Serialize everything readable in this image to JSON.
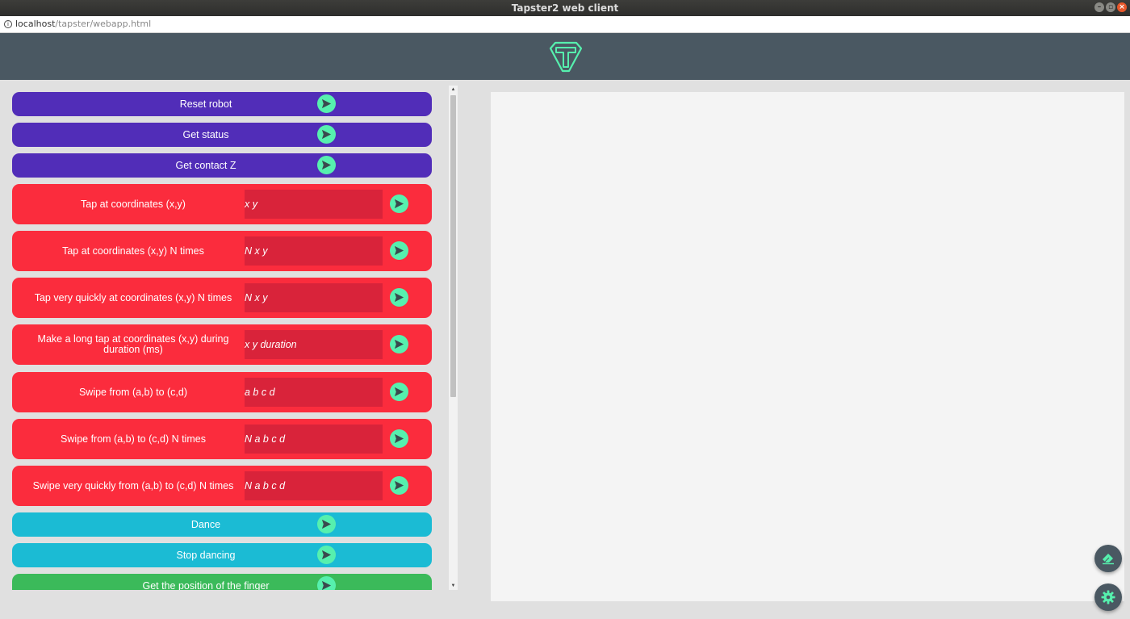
{
  "window": {
    "title": "Tapster2 web client"
  },
  "url": {
    "host": "localhost",
    "path": "/tapster/webapp.html"
  },
  "colors": {
    "header": "#4a5862",
    "accent": "#56f0ae",
    "purple": "#512db8",
    "red": "#fb2c3d",
    "input_red": "#d9233a",
    "cyan": "#1bbbd4",
    "green": "#3bba5a"
  },
  "commands": {
    "reset": {
      "label": "Reset robot"
    },
    "status": {
      "label": "Get status"
    },
    "contact": {
      "label": "Get contact Z"
    },
    "tap": {
      "label": "Tap at coordinates (x,y)",
      "placeholder": "x y"
    },
    "tap_n": {
      "label": "Tap at coordinates (x,y) N times",
      "placeholder": "N x y"
    },
    "tap_quick": {
      "label": "Tap very quickly at coordinates (x,y) N times",
      "placeholder": "N x y"
    },
    "long_tap": {
      "label": "Make a long tap at coordinates (x,y) during duration (ms)",
      "placeholder": "x y duration"
    },
    "swipe": {
      "label": "Swipe from (a,b) to (c,d)",
      "placeholder": "a b c d"
    },
    "swipe_n": {
      "label": "Swipe from (a,b) to (c,d) N times",
      "placeholder": "N a b c d"
    },
    "swipe_quick": {
      "label": "Swipe very quickly from (a,b) to (c,d) N times",
      "placeholder": "N a b c d"
    },
    "dance": {
      "label": "Dance"
    },
    "stop_dance": {
      "label": "Stop dancing"
    },
    "finger_pos": {
      "label": "Get the position of the finger"
    }
  },
  "icons": {
    "send": "send-icon",
    "eraser": "eraser-icon",
    "settings": "gear-icon",
    "logo": "tapster-logo"
  }
}
